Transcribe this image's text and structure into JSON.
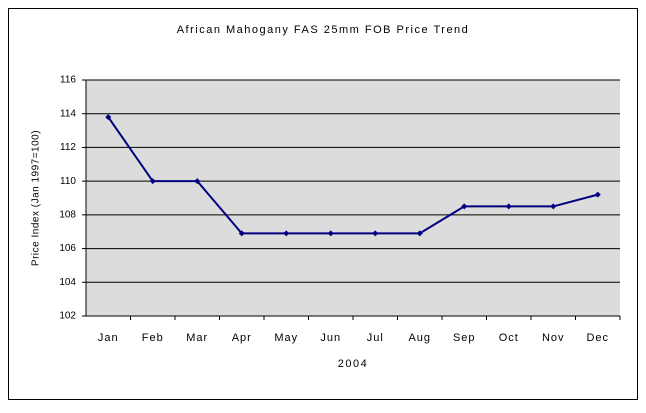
{
  "chart_data": {
    "type": "line",
    "title": "African Mahogany FAS 25mm FOB Price Trend",
    "x_label": "2004",
    "y_label": "Price Index (Jan 1997=100)",
    "categories": [
      "Jan",
      "Feb",
      "Mar",
      "Apr",
      "May",
      "Jun",
      "Jul",
      "Aug",
      "Sep",
      "Oct",
      "Nov",
      "Dec"
    ],
    "series": [
      {
        "name": "Price Index",
        "color": "#000080",
        "values": [
          113.8,
          110,
          110,
          106.9,
          106.9,
          106.9,
          106.9,
          106.9,
          108.5,
          108.5,
          108.5,
          109.2
        ]
      }
    ],
    "ylim": [
      102,
      116
    ],
    "yticks": [
      102,
      104,
      106,
      108,
      110,
      112,
      114,
      116
    ],
    "grid": true
  }
}
